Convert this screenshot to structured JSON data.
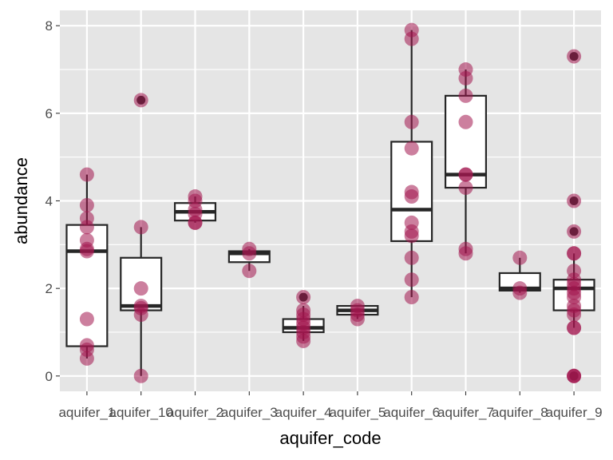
{
  "chart_data": {
    "type": "box",
    "xlabel": "aquifer_code",
    "ylabel": "abundance",
    "ylim": [
      -0.35,
      8.35
    ],
    "yticks": [
      0,
      2,
      4,
      6,
      8
    ],
    "grid": true,
    "legend": "none",
    "colors": {
      "panel": "#e5e5e5",
      "grid": "#ffffff",
      "box_fill": "#ffffff",
      "box_line": "#262626",
      "point": "#a3164f",
      "text": "#4d4d4d"
    },
    "categories": [
      "aquifer_1",
      "aquifer_10",
      "aquifer_2",
      "aquifer_3",
      "aquifer_4",
      "aquifer_5",
      "aquifer_6",
      "aquifer_7",
      "aquifer_8",
      "aquifer_9"
    ],
    "boxes": [
      {
        "min": 0.4,
        "q1": 0.68,
        "median": 2.85,
        "q3": 3.45,
        "max": 4.6
      },
      {
        "min": 0.0,
        "q1": 1.5,
        "median": 1.6,
        "q3": 2.7,
        "max": 3.4
      },
      {
        "min": 3.5,
        "q1": 3.55,
        "median": 3.75,
        "q3": 3.95,
        "max": 4.1
      },
      {
        "min": 2.4,
        "q1": 2.6,
        "median": 2.8,
        "q3": 2.85,
        "max": 2.9
      },
      {
        "min": 0.8,
        "q1": 1.0,
        "median": 1.1,
        "q3": 1.3,
        "max": 1.6
      },
      {
        "min": 1.3,
        "q1": 1.4,
        "median": 1.5,
        "q3": 1.6,
        "max": 1.6
      },
      {
        "min": 1.8,
        "q1": 3.08,
        "median": 3.8,
        "q3": 5.35,
        "max": 7.9
      },
      {
        "min": 2.8,
        "q1": 4.3,
        "median": 4.6,
        "q3": 6.4,
        "max": 7.0
      },
      {
        "min": 1.9,
        "q1": 1.95,
        "median": 2.0,
        "q3": 2.35,
        "max": 2.7
      },
      {
        "min": 1.1,
        "q1": 1.5,
        "median": 2.0,
        "q3": 2.2,
        "max": 2.8
      }
    ],
    "outliers": [
      [],
      [
        6.3
      ],
      [],
      [],
      [
        1.8
      ],
      [],
      [],
      [],
      [],
      [
        0,
        0,
        0,
        3.3,
        4.0,
        7.3
      ]
    ],
    "points": [
      [
        4.6,
        3.9,
        3.6,
        3.4,
        3.1,
        2.9,
        2.85,
        1.3,
        0.7,
        0.6,
        0.4
      ],
      [
        6.3,
        3.4,
        2.0,
        1.6,
        1.55,
        1.4,
        0.0
      ],
      [
        4.1,
        4.0,
        3.8,
        3.7,
        3.5,
        3.5
      ],
      [
        2.9,
        2.8,
        2.4
      ],
      [
        1.8,
        1.5,
        1.4,
        1.3,
        1.2,
        1.1,
        1.0,
        0.9,
        0.8
      ],
      [
        1.6,
        1.5,
        1.4,
        1.3
      ],
      [
        7.9,
        7.7,
        5.8,
        5.2,
        4.2,
        4.1,
        3.5,
        3.3,
        3.2,
        2.7,
        2.2,
        1.8
      ],
      [
        7.0,
        6.8,
        6.4,
        5.8,
        4.6,
        4.6,
        4.3,
        2.9,
        2.8
      ],
      [
        2.7,
        2.0,
        1.9
      ],
      [
        7.3,
        4.0,
        3.3,
        2.8,
        2.8,
        2.4,
        2.2,
        2.1,
        2.0,
        1.9,
        1.8,
        1.6,
        1.5,
        1.4,
        1.1,
        1.1,
        0,
        0,
        0
      ]
    ]
  }
}
